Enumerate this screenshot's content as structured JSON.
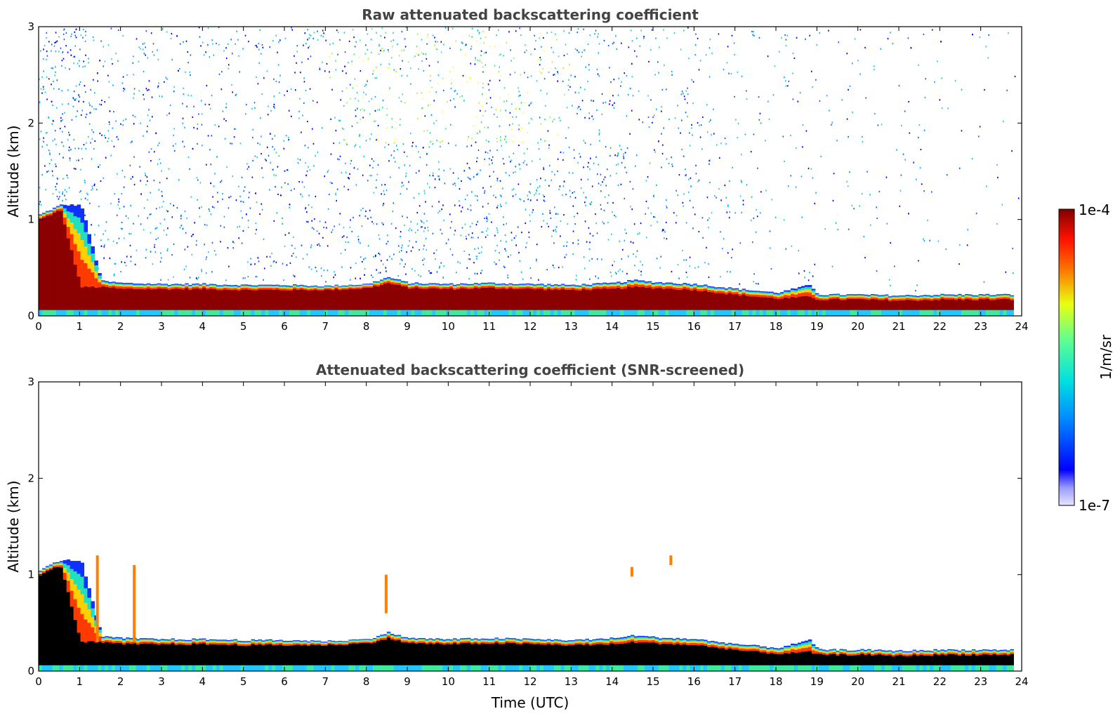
{
  "chart_data": [
    {
      "type": "heatmap",
      "title": "Raw attenuated backscattering coefficient",
      "xlabel": "",
      "ylabel": "Altitude (km)",
      "xlim": [
        0,
        24
      ],
      "ylim": [
        0,
        3
      ],
      "x_ticks": [
        "0",
        "1",
        "2",
        "3",
        "4",
        "5",
        "6",
        "7",
        "8",
        "9",
        "10",
        "11",
        "12",
        "13",
        "14",
        "15",
        "16",
        "17",
        "18",
        "19",
        "20",
        "21",
        "22",
        "23",
        "24"
      ],
      "y_ticks": [
        "0",
        "1",
        "2",
        "3"
      ],
      "layer_profile": {
        "time_utc": [
          0.0,
          0.5,
          1.0,
          1.5,
          2.0,
          3.0,
          4.0,
          5.0,
          6.0,
          7.0,
          8.0,
          8.5,
          9.0,
          10.0,
          11.0,
          12.0,
          13.0,
          14.0,
          14.5,
          15.0,
          16.0,
          17.0,
          18.0,
          18.8,
          19.0,
          20.0,
          21.0,
          22.0,
          23.0,
          23.8
        ],
        "top_km": [
          1.05,
          1.15,
          1.15,
          0.36,
          0.34,
          0.33,
          0.33,
          0.32,
          0.32,
          0.31,
          0.33,
          0.4,
          0.34,
          0.33,
          0.34,
          0.33,
          0.32,
          0.34,
          0.37,
          0.35,
          0.33,
          0.28,
          0.24,
          0.32,
          0.22,
          0.22,
          0.21,
          0.22,
          0.22,
          0.22
        ],
        "strong_top_km": [
          1.0,
          1.1,
          0.3,
          0.3,
          0.28,
          0.28,
          0.28,
          0.27,
          0.27,
          0.27,
          0.29,
          0.34,
          0.29,
          0.28,
          0.29,
          0.28,
          0.27,
          0.28,
          0.3,
          0.29,
          0.27,
          0.22,
          0.18,
          0.2,
          0.17,
          0.17,
          0.16,
          0.17,
          0.17,
          0.17
        ]
      },
      "noise_density": {
        "time_utc": [
          0,
          2,
          4,
          6,
          8,
          10,
          12,
          14,
          16,
          18,
          20,
          22,
          24
        ],
        "relative": [
          0.8,
          0.7,
          0.55,
          0.6,
          0.85,
          0.9,
          0.85,
          0.7,
          0.45,
          0.25,
          0.15,
          0.1,
          0.08
        ]
      }
    },
    {
      "type": "heatmap",
      "title": "Attenuated backscattering coefficient (SNR-screened)",
      "xlabel": "Time (UTC)",
      "ylabel": "Altitude (km)",
      "xlim": [
        0,
        24
      ],
      "ylim": [
        0,
        3
      ],
      "x_ticks": [
        "0",
        "1",
        "2",
        "3",
        "4",
        "5",
        "6",
        "7",
        "8",
        "9",
        "10",
        "11",
        "12",
        "13",
        "14",
        "15",
        "16",
        "17",
        "18",
        "19",
        "20",
        "21",
        "22",
        "23",
        "24"
      ],
      "y_ticks": [
        "0",
        "1",
        "2",
        "3"
      ],
      "saturated_color": "#000000"
    }
  ],
  "colorbar": {
    "label": "1/m/sr",
    "max_label": "1e-4",
    "min_label": "1e-7",
    "colormap": "jet",
    "scale": "log",
    "range": [
      1e-07,
      0.0001
    ]
  }
}
